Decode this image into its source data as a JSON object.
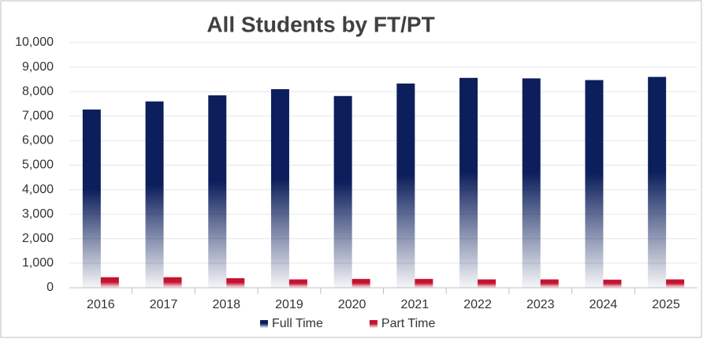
{
  "chart_data": {
    "type": "bar",
    "title": "All Students by FT/PT",
    "categories": [
      "2016",
      "2017",
      "2018",
      "2019",
      "2020",
      "2021",
      "2022",
      "2023",
      "2024",
      "2025"
    ],
    "series": [
      {
        "name": "Full Time",
        "color": "#0c1f5c",
        "values": [
          7270,
          7600,
          7850,
          8100,
          7820,
          8330,
          8560,
          8540,
          8470,
          8600
        ]
      },
      {
        "name": "Part Time",
        "color": "#c41230",
        "values": [
          430,
          430,
          390,
          340,
          360,
          360,
          340,
          340,
          330,
          340
        ]
      }
    ],
    "ylim": [
      0,
      10000
    ],
    "yticks": [
      0,
      {
        "value": 1000,
        "label": "1,000"
      },
      {
        "value": 2000,
        "label": "2,000"
      },
      {
        "value": 3000,
        "label": "3,000"
      },
      {
        "value": 4000,
        "label": "4,000"
      },
      {
        "value": 5000,
        "label": "5,000"
      },
      {
        "value": 6000,
        "label": "6,000"
      },
      {
        "value": 7000,
        "label": "7,000"
      },
      {
        "value": 8000,
        "label": "8,000"
      },
      {
        "value": 9000,
        "label": "9,000"
      },
      {
        "value": 10000,
        "label": "10,000"
      }
    ],
    "grid": true,
    "legend": "bottom"
  }
}
